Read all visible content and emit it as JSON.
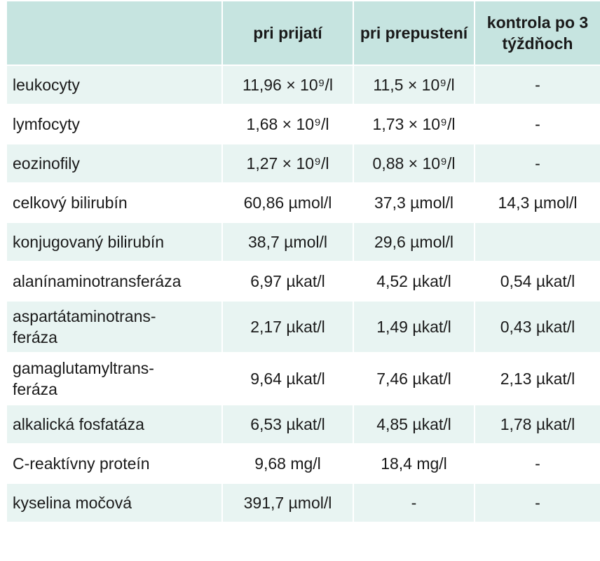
{
  "table": {
    "headers": [
      "",
      "pri prijatí",
      "pri prepustení",
      "kontrola po 3 týždňoch"
    ],
    "rows": [
      {
        "label": "leukocyty",
        "v1": "11,96 × 10⁹/l",
        "v2": "11,5 × 10⁹/l",
        "v3": "-"
      },
      {
        "label": "lymfocyty",
        "v1": "1,68 × 10⁹/l",
        "v2": "1,73 × 10⁹/l",
        "v3": "-"
      },
      {
        "label": "eozinofily",
        "v1": "1,27 × 10⁹/l",
        "v2": "0,88 × 10⁹/l",
        "v3": "-"
      },
      {
        "label": "celkový bilirubín",
        "v1": "60,86 µmol/l",
        "v2": "37,3 µmol/l",
        "v3": "14,3 µmol/l"
      },
      {
        "label": "konjugovaný bilirubín",
        "v1": "38,7 µmol/l",
        "v2": "29,6 µmol/l",
        "v3": ""
      },
      {
        "label": "alanínaminotransferáza",
        "v1": "6,97 µkat/l",
        "v2": "4,52 µkat/l",
        "v3": "0,54 µkat/l"
      },
      {
        "label": "aspartátaminotrans-\nferáza",
        "v1": "2,17 µkat/l",
        "v2": "1,49 µkat/l",
        "v3": "0,43 µkat/l"
      },
      {
        "label": "gamaglutamyltrans-\nferáza",
        "v1": "9,64 µkat/l",
        "v2": "7,46 µkat/l",
        "v3": "2,13 µkat/l"
      },
      {
        "label": "alkalická fosfatáza",
        "v1": "6,53 µkat/l",
        "v2": "4,85 µkat/l",
        "v3": "1,78 µkat/l"
      },
      {
        "label": "C-reaktívny proteín",
        "v1": "9,68 mg/l",
        "v2": "18,4 mg/l",
        "v3": "-"
      },
      {
        "label": "kyselina močová",
        "v1": "391,7 µmol/l",
        "v2": "-",
        "v3": "-"
      }
    ]
  },
  "colors": {
    "header_bg": "#c6e4e0",
    "stripe_bg": "#e8f4f2"
  }
}
